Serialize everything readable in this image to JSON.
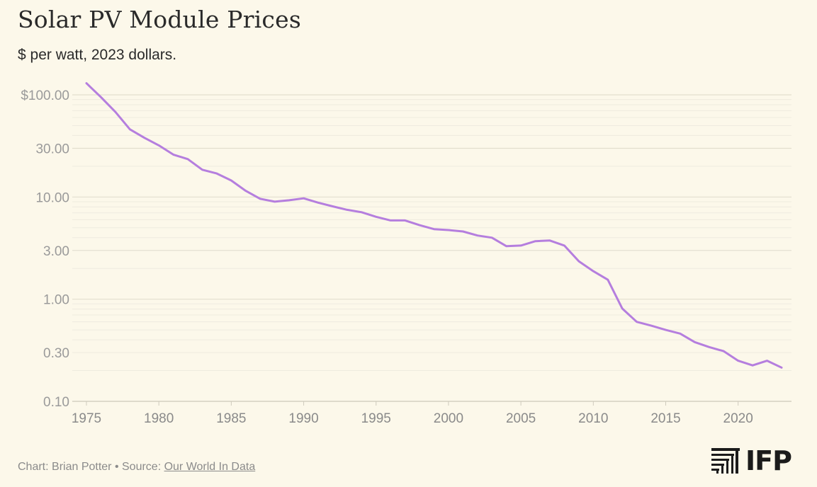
{
  "header": {
    "title": "Solar PV Module Prices",
    "subtitle": "$ per watt, 2023 dollars."
  },
  "footer": {
    "credit_prefix": "Chart: Brian Potter • Source: ",
    "source_link": "Our World In Data"
  },
  "logo": {
    "text": "IFP",
    "icon": "ifp-stripes-icon"
  },
  "colors": {
    "line": "#b57ede",
    "background": "#fcf8ea",
    "grid": "#e6e3d6",
    "tick": "#9a9a9a"
  },
  "chart_data": {
    "type": "line",
    "title": "Solar PV Module Prices",
    "subtitle": "$ per watt, 2023 dollars.",
    "y_scale": "log",
    "ylim": [
      0.1,
      130
    ],
    "xlim": [
      1975,
      2023
    ],
    "grid": true,
    "y_ticks": [
      0.1,
      0.3,
      1,
      3,
      10,
      30,
      100
    ],
    "y_tick_labels": [
      "0.10",
      "0.30",
      "1.00",
      "3.00",
      "10.00",
      "30.00",
      "$100.00"
    ],
    "x_ticks": [
      1975,
      1980,
      1985,
      1990,
      1995,
      2000,
      2005,
      2010,
      2015,
      2020
    ],
    "x_tick_labels": [
      "1975",
      "1980",
      "1985",
      "1990",
      "1995",
      "2000",
      "2005",
      "2010",
      "2015",
      "2020"
    ],
    "x": [
      1975,
      1976,
      1977,
      1978,
      1979,
      1980,
      1981,
      1982,
      1983,
      1984,
      1985,
      1986,
      1987,
      1988,
      1989,
      1990,
      1991,
      1992,
      1993,
      1994,
      1995,
      1996,
      1997,
      1998,
      1999,
      2000,
      2001,
      2002,
      2003,
      2004,
      2005,
      2006,
      2007,
      2008,
      2009,
      2010,
      2011,
      2012,
      2013,
      2014,
      2015,
      2016,
      2017,
      2018,
      2019,
      2020,
      2021,
      2022,
      2023
    ],
    "series": [
      {
        "values": [
          130,
          95,
          68,
          46,
          38,
          32,
          26,
          23.5,
          18.5,
          17,
          14.5,
          11.5,
          9.6,
          9.0,
          9.3,
          9.7,
          8.8,
          8.1,
          7.5,
          7.1,
          6.4,
          5.9,
          5.9,
          5.3,
          4.85,
          4.75,
          4.6,
          4.2,
          4.0,
          3.3,
          3.35,
          3.7,
          3.75,
          3.35,
          2.35,
          1.88,
          1.55,
          0.81,
          0.6,
          0.55,
          0.5,
          0.46,
          0.38,
          0.34,
          0.31,
          0.25,
          0.225,
          0.25,
          0.214
        ]
      }
    ]
  }
}
